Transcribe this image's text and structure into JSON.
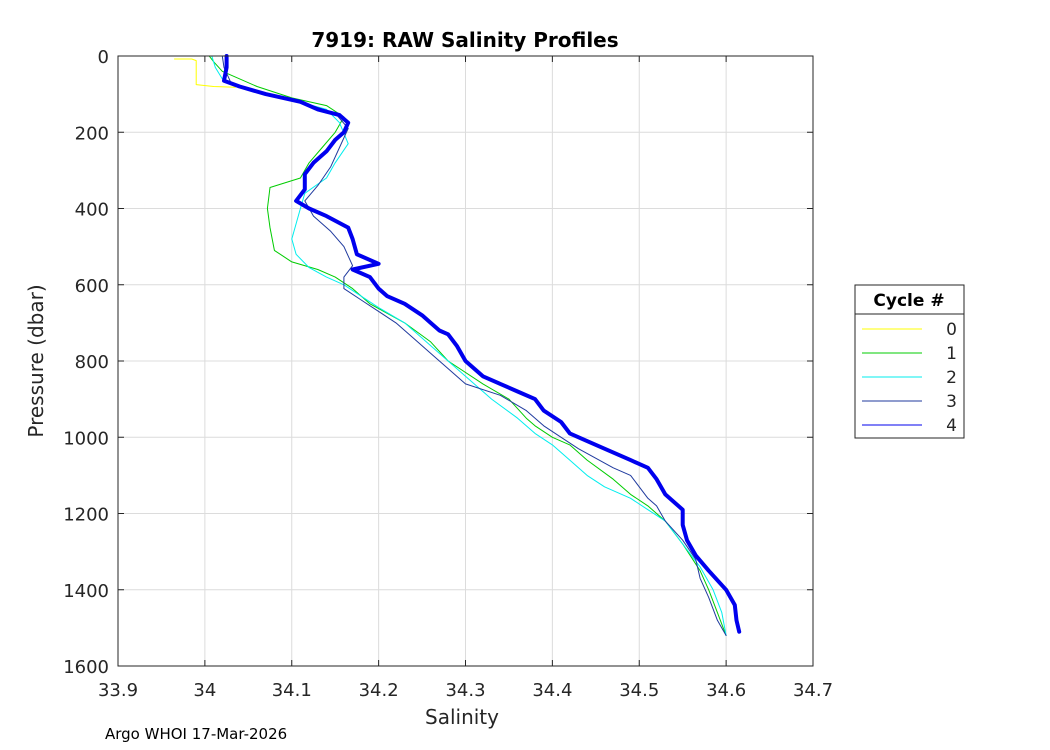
{
  "chart_data": {
    "type": "line",
    "title": "7919: RAW Salinity Profiles",
    "xlabel": "Salinity",
    "ylabel": "Pressure (dbar)",
    "xlim": [
      33.9,
      34.7
    ],
    "ylim": [
      0,
      1600
    ],
    "y_reversed": true,
    "grid": true,
    "x_ticks": [
      33.9,
      34.0,
      34.1,
      34.2,
      34.3,
      34.4,
      34.5,
      34.6,
      34.7
    ],
    "x_tick_labels": [
      "33.9",
      "34",
      "34.1",
      "34.2",
      "34.3",
      "34.4",
      "34.5",
      "34.6",
      "34.7"
    ],
    "y_ticks": [
      0,
      200,
      400,
      600,
      800,
      1000,
      1200,
      1400,
      1600
    ],
    "y_tick_labels": [
      "0",
      "200",
      "400",
      "600",
      "800",
      "1000",
      "1200",
      "1400",
      "1600"
    ],
    "legend": {
      "title": "Cycle #",
      "placement": "outside-right"
    },
    "series": [
      {
        "name": "0",
        "color": "#ffff00",
        "width": 1,
        "points": [
          [
            33.965,
            8
          ],
          [
            33.985,
            8
          ],
          [
            33.99,
            12
          ],
          [
            33.99,
            30
          ],
          [
            33.99,
            65
          ],
          [
            33.99,
            75
          ],
          [
            34.01,
            80
          ],
          [
            34.035,
            82
          ]
        ]
      },
      {
        "name": "1",
        "color": "#00cc00",
        "width": 1,
        "points": [
          [
            34.005,
            0
          ],
          [
            34.01,
            15
          ],
          [
            34.02,
            40
          ],
          [
            34.06,
            80
          ],
          [
            34.1,
            110
          ],
          [
            34.14,
            130
          ],
          [
            34.16,
            160
          ],
          [
            34.15,
            200
          ],
          [
            34.135,
            240
          ],
          [
            34.12,
            280
          ],
          [
            34.11,
            320
          ],
          [
            34.075,
            345
          ],
          [
            34.072,
            400
          ],
          [
            34.075,
            450
          ],
          [
            34.08,
            510
          ],
          [
            34.1,
            540
          ],
          [
            34.13,
            560
          ],
          [
            34.15,
            580
          ],
          [
            34.17,
            610
          ],
          [
            34.19,
            650
          ],
          [
            34.23,
            700
          ],
          [
            34.26,
            750
          ],
          [
            34.28,
            800
          ],
          [
            34.32,
            860
          ],
          [
            34.35,
            900
          ],
          [
            34.37,
            950
          ],
          [
            34.38,
            970
          ],
          [
            34.4,
            1000
          ],
          [
            34.42,
            1020
          ],
          [
            34.44,
            1060
          ],
          [
            34.47,
            1110
          ],
          [
            34.49,
            1150
          ],
          [
            34.51,
            1180
          ],
          [
            34.53,
            1220
          ],
          [
            34.55,
            1280
          ],
          [
            34.57,
            1350
          ],
          [
            34.58,
            1400
          ],
          [
            34.59,
            1460
          ],
          [
            34.6,
            1520
          ]
        ]
      },
      {
        "name": "2",
        "color": "#00eeee",
        "width": 1,
        "points": [
          [
            34.008,
            0
          ],
          [
            34.012,
            30
          ],
          [
            34.02,
            60
          ],
          [
            34.05,
            90
          ],
          [
            34.1,
            115
          ],
          [
            34.14,
            140
          ],
          [
            34.155,
            175
          ],
          [
            34.165,
            230
          ],
          [
            34.15,
            280
          ],
          [
            34.14,
            320
          ],
          [
            34.115,
            360
          ],
          [
            34.11,
            400
          ],
          [
            34.105,
            440
          ],
          [
            34.1,
            480
          ],
          [
            34.105,
            520
          ],
          [
            34.12,
            555
          ],
          [
            34.14,
            580
          ],
          [
            34.16,
            600
          ],
          [
            34.18,
            630
          ],
          [
            34.2,
            660
          ],
          [
            34.23,
            700
          ],
          [
            34.25,
            740
          ],
          [
            34.27,
            780
          ],
          [
            34.29,
            820
          ],
          [
            34.31,
            860
          ],
          [
            34.33,
            900
          ],
          [
            34.36,
            950
          ],
          [
            34.38,
            990
          ],
          [
            34.4,
            1020
          ],
          [
            34.42,
            1060
          ],
          [
            34.44,
            1100
          ],
          [
            34.46,
            1130
          ],
          [
            34.49,
            1160
          ],
          [
            34.51,
            1190
          ],
          [
            34.53,
            1220
          ],
          [
            34.55,
            1280
          ],
          [
            34.57,
            1340
          ],
          [
            34.585,
            1400
          ],
          [
            34.595,
            1460
          ],
          [
            34.6,
            1520
          ]
        ]
      },
      {
        "name": "3",
        "color": "#1f3a9e",
        "width": 1,
        "points": [
          [
            34.02,
            0
          ],
          [
            34.022,
            30
          ],
          [
            34.03,
            70
          ],
          [
            34.07,
            100
          ],
          [
            34.11,
            120
          ],
          [
            34.15,
            150
          ],
          [
            34.165,
            190
          ],
          [
            34.155,
            240
          ],
          [
            34.145,
            290
          ],
          [
            34.13,
            340
          ],
          [
            34.115,
            380
          ],
          [
            34.125,
            420
          ],
          [
            34.145,
            460
          ],
          [
            34.16,
            500
          ],
          [
            34.17,
            550
          ],
          [
            34.16,
            580
          ],
          [
            34.16,
            610
          ],
          [
            34.18,
            640
          ],
          [
            34.2,
            670
          ],
          [
            34.22,
            700
          ],
          [
            34.24,
            740
          ],
          [
            34.26,
            780
          ],
          [
            34.28,
            820
          ],
          [
            34.3,
            860
          ],
          [
            34.34,
            890
          ],
          [
            34.37,
            930
          ],
          [
            34.39,
            970
          ],
          [
            34.41,
            1000
          ],
          [
            34.43,
            1030
          ],
          [
            34.47,
            1080
          ],
          [
            34.49,
            1100
          ],
          [
            34.5,
            1130
          ],
          [
            34.51,
            1160
          ],
          [
            34.52,
            1180
          ],
          [
            34.53,
            1220
          ],
          [
            34.55,
            1270
          ],
          [
            34.565,
            1320
          ],
          [
            34.57,
            1370
          ],
          [
            34.58,
            1420
          ],
          [
            34.59,
            1480
          ],
          [
            34.6,
            1520
          ]
        ]
      },
      {
        "name": "4",
        "color": "#0000ee",
        "width": 4,
        "points": [
          [
            34.025,
            0
          ],
          [
            34.025,
            30
          ],
          [
            34.022,
            65
          ],
          [
            34.04,
            80
          ],
          [
            34.07,
            100
          ],
          [
            34.09,
            110
          ],
          [
            34.11,
            120
          ],
          [
            34.13,
            140
          ],
          [
            34.155,
            155
          ],
          [
            34.165,
            175
          ],
          [
            34.16,
            200
          ],
          [
            34.15,
            220
          ],
          [
            34.14,
            250
          ],
          [
            34.125,
            280
          ],
          [
            34.115,
            310
          ],
          [
            34.115,
            350
          ],
          [
            34.105,
            380
          ],
          [
            34.12,
            400
          ],
          [
            34.14,
            420
          ],
          [
            34.165,
            450
          ],
          [
            34.17,
            480
          ],
          [
            34.175,
            520
          ],
          [
            34.2,
            545
          ],
          [
            34.17,
            560
          ],
          [
            34.19,
            580
          ],
          [
            34.2,
            610
          ],
          [
            34.21,
            630
          ],
          [
            34.23,
            650
          ],
          [
            34.25,
            680
          ],
          [
            34.26,
            700
          ],
          [
            34.27,
            720
          ],
          [
            34.28,
            730
          ],
          [
            34.29,
            760
          ],
          [
            34.3,
            800
          ],
          [
            34.32,
            840
          ],
          [
            34.34,
            860
          ],
          [
            34.36,
            880
          ],
          [
            34.38,
            900
          ],
          [
            34.39,
            930
          ],
          [
            34.41,
            960
          ],
          [
            34.42,
            990
          ],
          [
            34.44,
            1010
          ],
          [
            34.46,
            1030
          ],
          [
            34.49,
            1060
          ],
          [
            34.51,
            1080
          ],
          [
            34.52,
            1110
          ],
          [
            34.53,
            1150
          ],
          [
            34.55,
            1190
          ],
          [
            34.55,
            1230
          ],
          [
            34.555,
            1270
          ],
          [
            34.565,
            1310
          ],
          [
            34.58,
            1350
          ],
          [
            34.6,
            1400
          ],
          [
            34.61,
            1440
          ],
          [
            34.612,
            1480
          ],
          [
            34.615,
            1510
          ]
        ]
      }
    ]
  },
  "footer": "Argo WHOI 17-Mar-2026"
}
